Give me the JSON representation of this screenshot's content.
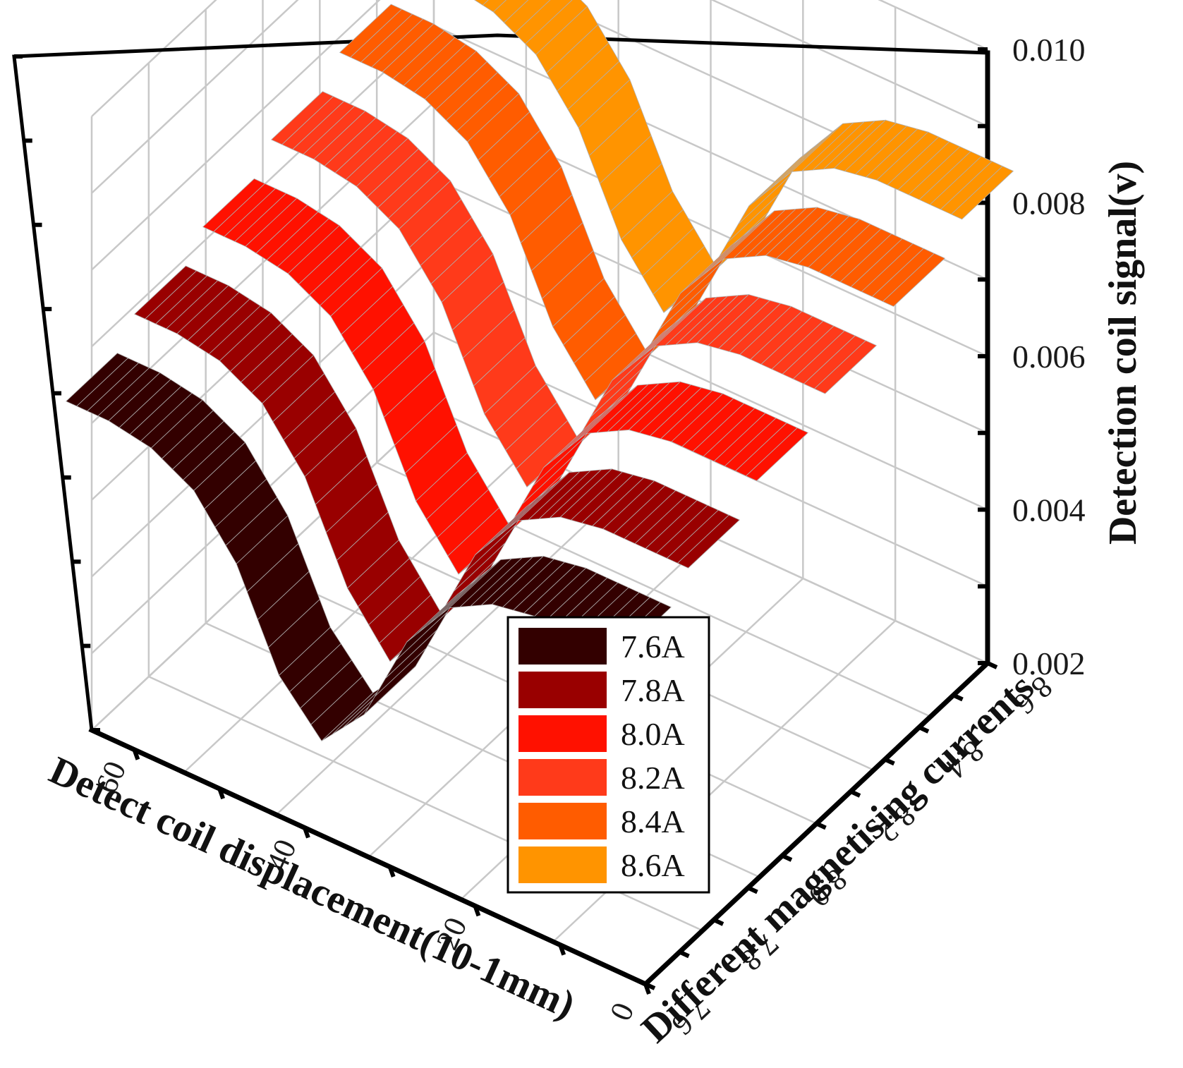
{
  "chart_data": {
    "type": "3d-ribbon",
    "zlabel": "Detection coil signal(v)",
    "xlabel": "Detect coil displacement(10-1mm)",
    "ylabel": "Different magnetising currents",
    "z_ticks": [
      "0.002",
      "0.004",
      "0.006",
      "0.008",
      "0.010"
    ],
    "zlim": [
      0.002,
      0.01
    ],
    "x_ticks": [
      "0",
      "20",
      "40",
      "60"
    ],
    "xlim": [
      0,
      65
    ],
    "y_ticks": [
      "7.6",
      "7.8",
      "8.0",
      "8.2",
      "8.4",
      "8.6"
    ],
    "grid": true,
    "legend_position": "bottom-center",
    "series": [
      {
        "name": "7.6A",
        "current": 7.6,
        "color": "#330000",
        "x": [
          0,
          5,
          10,
          15,
          20,
          25,
          30,
          35,
          40,
          45,
          50,
          55,
          60,
          65
        ],
        "y": [
          0.0066,
          0.0066,
          0.0066,
          0.0065,
          0.0062,
          0.0055,
          0.0043,
          0.0037,
          0.0043,
          0.0055,
          0.0062,
          0.0065,
          0.0066,
          0.0066
        ]
      },
      {
        "name": "7.8A",
        "current": 7.8,
        "color": "#990000",
        "x": [
          0,
          5,
          10,
          15,
          20,
          25,
          30,
          35,
          40,
          45,
          50,
          55,
          60,
          65
        ],
        "y": [
          0.0069,
          0.0069,
          0.0069,
          0.0068,
          0.0065,
          0.0058,
          0.0046,
          0.0039,
          0.0046,
          0.0058,
          0.0065,
          0.0068,
          0.0069,
          0.0069
        ]
      },
      {
        "name": "8.0A",
        "current": 8.0,
        "color": "#ff1100",
        "x": [
          0,
          5,
          10,
          15,
          20,
          25,
          30,
          35,
          40,
          45,
          50,
          55,
          60,
          65
        ],
        "y": [
          0.0072,
          0.0072,
          0.0072,
          0.0071,
          0.0068,
          0.0061,
          0.0049,
          0.0042,
          0.0049,
          0.0061,
          0.0068,
          0.0071,
          0.0072,
          0.0072
        ]
      },
      {
        "name": "8.2A",
        "current": 8.2,
        "color": "#ff3a1a",
        "x": [
          0,
          5,
          10,
          15,
          20,
          25,
          30,
          35,
          40,
          45,
          50,
          55,
          60,
          65
        ],
        "y": [
          0.0075,
          0.0075,
          0.0075,
          0.0074,
          0.0071,
          0.0064,
          0.0052,
          0.0045,
          0.0052,
          0.0064,
          0.0071,
          0.0074,
          0.0075,
          0.0075
        ]
      },
      {
        "name": "8.4A",
        "current": 8.4,
        "color": "#ff5c00",
        "x": [
          0,
          5,
          10,
          15,
          20,
          25,
          30,
          35,
          40,
          45,
          50,
          55,
          60,
          65
        ],
        "y": [
          0.0078,
          0.0078,
          0.0078,
          0.0077,
          0.0074,
          0.0067,
          0.0055,
          0.0048,
          0.0055,
          0.0067,
          0.0074,
          0.0077,
          0.0078,
          0.0078
        ]
      },
      {
        "name": "8.6A",
        "current": 8.6,
        "color": "#ff9400",
        "x": [
          0,
          5,
          10,
          15,
          20,
          25,
          30,
          35,
          40,
          45,
          50,
          55,
          60,
          65
        ],
        "y": [
          0.0081,
          0.0081,
          0.0081,
          0.008,
          0.0077,
          0.007,
          0.0058,
          0.0051,
          0.0058,
          0.007,
          0.0077,
          0.008,
          0.0081,
          0.0081
        ]
      }
    ]
  }
}
